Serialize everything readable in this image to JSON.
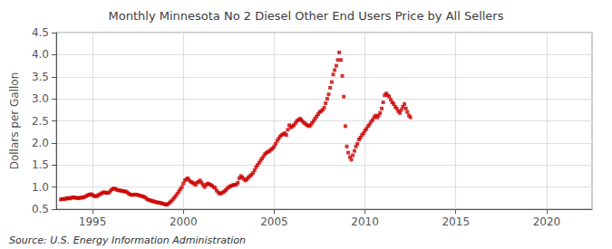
{
  "chart_data": {
    "type": "scatter",
    "title": "Monthly Minnesota No 2 Diesel Other End Users Price by All Sellers",
    "ylabel": "Dollars per Gallon",
    "annotations": [
      "Source: U.S. Energy Information Administration"
    ],
    "color": "#CC0000",
    "marker": "square",
    "grid": true,
    "xlim": [
      1993.0,
      2022.5
    ],
    "xticks": [
      1995,
      2000,
      2005,
      2010,
      2015,
      2020
    ],
    "ylim": [
      0.5,
      4.5
    ],
    "yticks": [
      0.5,
      {
        "value": 1.0,
        "label": "1.0"
      },
      1.5,
      {
        "value": 2.0,
        "label": "2.0"
      },
      2.5,
      {
        "value": 3.0,
        "label": "3.0"
      },
      3.5,
      {
        "value": 4.0,
        "label": "4.0"
      },
      4.5
    ],
    "x": [
      1993.25,
      1993.33,
      1993.42,
      1993.5,
      1993.58,
      1993.67,
      1993.75,
      1993.83,
      1993.92,
      1994.0,
      1994.08,
      1994.17,
      1994.25,
      1994.33,
      1994.42,
      1994.5,
      1994.58,
      1994.67,
      1994.75,
      1994.83,
      1994.92,
      1995.0,
      1995.08,
      1995.17,
      1995.25,
      1995.33,
      1995.42,
      1995.5,
      1995.58,
      1995.67,
      1995.75,
      1995.83,
      1995.92,
      1996.0,
      1996.08,
      1996.17,
      1996.25,
      1996.33,
      1996.42,
      1996.5,
      1996.58,
      1996.67,
      1996.75,
      1996.83,
      1996.92,
      1997.0,
      1997.08,
      1997.17,
      1997.25,
      1997.33,
      1997.42,
      1997.5,
      1997.58,
      1997.67,
      1997.75,
      1997.83,
      1997.92,
      1998.0,
      1998.08,
      1998.17,
      1998.25,
      1998.33,
      1998.42,
      1998.5,
      1998.58,
      1998.67,
      1998.75,
      1998.83,
      1998.92,
      1999.0,
      1999.08,
      1999.17,
      1999.25,
      1999.33,
      1999.42,
      1999.5,
      1999.58,
      1999.67,
      1999.75,
      1999.83,
      1999.92,
      2000.0,
      2000.08,
      2000.17,
      2000.25,
      2000.33,
      2000.42,
      2000.5,
      2000.58,
      2000.67,
      2000.75,
      2000.83,
      2000.92,
      2001.0,
      2001.08,
      2001.17,
      2001.25,
      2001.33,
      2001.42,
      2001.5,
      2001.58,
      2001.67,
      2001.75,
      2001.83,
      2001.92,
      2002.0,
      2002.08,
      2002.17,
      2002.25,
      2002.33,
      2002.42,
      2002.5,
      2002.58,
      2002.67,
      2002.75,
      2002.83,
      2002.92,
      2003.0,
      2003.08,
      2003.17,
      2003.25,
      2003.33,
      2003.42,
      2003.5,
      2003.58,
      2003.67,
      2003.75,
      2003.83,
      2003.92,
      2004.0,
      2004.08,
      2004.17,
      2004.25,
      2004.33,
      2004.42,
      2004.5,
      2004.58,
      2004.67,
      2004.75,
      2004.83,
      2004.92,
      2005.0,
      2005.08,
      2005.17,
      2005.25,
      2005.33,
      2005.42,
      2005.5,
      2005.58,
      2005.67,
      2005.75,
      2005.83,
      2005.92,
      2006.0,
      2006.08,
      2006.17,
      2006.25,
      2006.33,
      2006.42,
      2006.5,
      2006.58,
      2006.67,
      2006.75,
      2006.83,
      2006.92,
      2007.0,
      2007.08,
      2007.17,
      2007.25,
      2007.33,
      2007.42,
      2007.5,
      2007.58,
      2007.67,
      2007.75,
      2007.83,
      2007.92,
      2008.0,
      2008.08,
      2008.17,
      2008.25,
      2008.33,
      2008.42,
      2008.5,
      2008.58,
      2008.67,
      2008.75,
      2008.83,
      2008.92,
      2009.0,
      2009.08,
      2009.17,
      2009.25,
      2009.33,
      2009.42,
      2009.5,
      2009.58,
      2009.67,
      2009.75,
      2009.83,
      2009.92,
      2010.0,
      2010.08,
      2010.17,
      2010.25,
      2010.33,
      2010.42,
      2010.5,
      2010.58,
      2010.67,
      2010.75,
      2010.83,
      2010.92,
      2011.0,
      2011.08,
      2011.17,
      2011.25,
      2011.33,
      2011.42,
      2011.5,
      2011.58,
      2011.67,
      2011.75,
      2011.83,
      2011.92,
      2012.0,
      2012.08,
      2012.17,
      2012.25,
      2012.33,
      2012.42,
      2012.5
    ],
    "values": [
      0.72,
      0.73,
      0.73,
      0.73,
      0.75,
      0.75,
      0.74,
      0.76,
      0.77,
      0.76,
      0.76,
      0.75,
      0.75,
      0.76,
      0.76,
      0.77,
      0.78,
      0.8,
      0.82,
      0.83,
      0.84,
      0.82,
      0.8,
      0.79,
      0.8,
      0.82,
      0.84,
      0.86,
      0.88,
      0.88,
      0.87,
      0.87,
      0.88,
      0.92,
      0.95,
      0.97,
      0.96,
      0.94,
      0.93,
      0.92,
      0.92,
      0.91,
      0.9,
      0.9,
      0.88,
      0.85,
      0.83,
      0.82,
      0.83,
      0.83,
      0.83,
      0.82,
      0.81,
      0.8,
      0.79,
      0.78,
      0.76,
      0.73,
      0.71,
      0.7,
      0.69,
      0.68,
      0.67,
      0.66,
      0.65,
      0.65,
      0.64,
      0.63,
      0.62,
      0.61,
      0.6,
      0.62,
      0.65,
      0.68,
      0.72,
      0.76,
      0.8,
      0.85,
      0.9,
      0.95,
      1.0,
      1.08,
      1.15,
      1.18,
      1.2,
      1.15,
      1.12,
      1.1,
      1.08,
      1.05,
      1.1,
      1.12,
      1.15,
      1.1,
      1.05,
      1.0,
      1.05,
      1.08,
      1.07,
      1.05,
      1.03,
      1.0,
      0.98,
      0.92,
      0.88,
      0.85,
      0.86,
      0.88,
      0.9,
      0.93,
      0.97,
      1.0,
      1.02,
      1.03,
      1.05,
      1.05,
      1.06,
      1.1,
      1.2,
      1.25,
      1.22,
      1.18,
      1.15,
      1.18,
      1.22,
      1.25,
      1.28,
      1.32,
      1.38,
      1.45,
      1.5,
      1.55,
      1.6,
      1.65,
      1.7,
      1.75,
      1.78,
      1.8,
      1.82,
      1.85,
      1.88,
      1.92,
      1.98,
      2.05,
      2.1,
      2.15,
      2.18,
      2.2,
      2.22,
      2.18,
      2.3,
      2.4,
      2.35,
      2.38,
      2.4,
      2.45,
      2.5,
      2.52,
      2.55,
      2.52,
      2.48,
      2.45,
      2.42,
      2.4,
      2.38,
      2.4,
      2.45,
      2.5,
      2.55,
      2.6,
      2.65,
      2.7,
      2.72,
      2.75,
      2.8,
      2.9,
      3.0,
      3.1,
      3.25,
      3.38,
      3.55,
      3.65,
      3.75,
      3.88,
      4.05,
      3.88,
      3.52,
      3.05,
      2.38,
      1.92,
      1.78,
      1.68,
      1.62,
      1.72,
      1.82,
      1.92,
      1.98,
      2.08,
      2.12,
      2.18,
      2.22,
      2.28,
      2.32,
      2.38,
      2.42,
      2.48,
      2.52,
      2.58,
      2.62,
      2.58,
      2.62,
      2.68,
      2.78,
      2.92,
      3.08,
      3.12,
      3.08,
      3.05,
      2.98,
      2.92,
      2.88,
      2.82,
      2.78,
      2.72,
      2.68,
      2.75,
      2.82,
      2.88,
      2.78,
      2.7,
      2.62,
      2.58
    ]
  }
}
